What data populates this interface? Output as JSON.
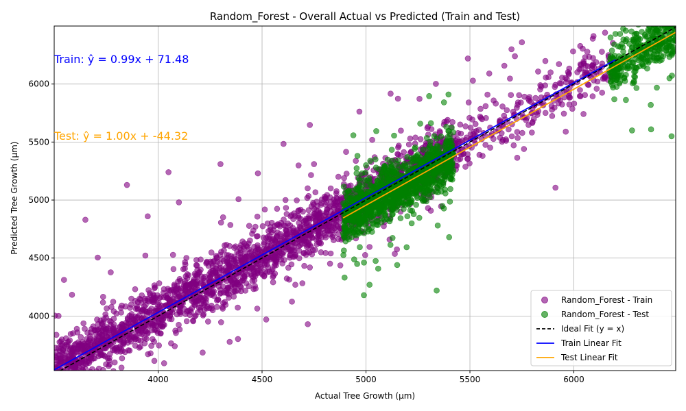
{
  "chart_data": {
    "type": "scatter",
    "title": "Random_Forest - Overall Actual vs Predicted (Train and Test)",
    "xlabel": "Actual Tree Growth (µm)",
    "ylabel": "Predicted Tree Growth (µm)",
    "xlim": [
      3500,
      6490
    ],
    "ylim": [
      3530,
      6500
    ],
    "x_ticks": [
      4000,
      4500,
      5000,
      5500,
      6000
    ],
    "y_ticks": [
      4000,
      4500,
      5000,
      5500,
      6000
    ],
    "grid": true,
    "legend_position": "bottom-right",
    "series": [
      {
        "name": "Random_Forest - Train",
        "kind": "scatter",
        "color": "#800080",
        "x_range": [
          3500,
          6200
        ],
        "noise_sd": 120,
        "outlier_range": 700,
        "sample_points": [
          [
            3650,
            4830
          ],
          [
            3950,
            4860
          ],
          [
            4050,
            5240
          ],
          [
            4300,
            5310
          ],
          [
            4750,
            5310
          ],
          [
            4480,
            5230
          ],
          [
            5490,
            6220
          ],
          [
            5700,
            6300
          ],
          [
            5750,
            6360
          ],
          [
            4520,
            3970
          ],
          [
            4720,
            3930
          ],
          [
            4080,
            3740
          ],
          [
            5760,
            5440
          ],
          [
            4100,
            4980
          ],
          [
            3850,
            5130
          ]
        ]
      },
      {
        "name": "Random_Forest - Test",
        "kind": "scatter",
        "color": "#008000",
        "x_range": [
          4890,
          6490
        ],
        "noise_sd": 110,
        "outlier_range": 600,
        "sample_points": [
          [
            5340,
            4220
          ],
          [
            6470,
            5550
          ],
          [
            6280,
            5600
          ],
          [
            5000,
            5300
          ],
          [
            5400,
            4680
          ],
          [
            6250,
            6460
          ],
          [
            6370,
            5820
          ],
          [
            4990,
            4180
          ],
          [
            5150,
            4440
          ],
          [
            6460,
            6050
          ]
        ]
      },
      {
        "name": "Ideal Fit (y = x)",
        "kind": "line",
        "style": "dashed",
        "color": "#000000",
        "x": [
          3500,
          6490
        ],
        "y": [
          3500,
          6490
        ]
      },
      {
        "name": "Train Linear Fit",
        "kind": "line",
        "style": "solid",
        "color": "#0000ff",
        "slope": 0.99,
        "intercept": 71.48,
        "x": [
          3500,
          6200
        ]
      },
      {
        "name": "Test Linear Fit",
        "kind": "line",
        "style": "solid",
        "color": "#ffa500",
        "slope": 1.0,
        "intercept": -44.32,
        "x": [
          4890,
          6490
        ]
      }
    ],
    "annotations": [
      {
        "text": "Train: ŷ = 0.99x + 71.48",
        "color": "#0000ff"
      },
      {
        "text": "Test: ŷ = 1.00x + -44.32",
        "color": "#ffa500"
      }
    ]
  }
}
